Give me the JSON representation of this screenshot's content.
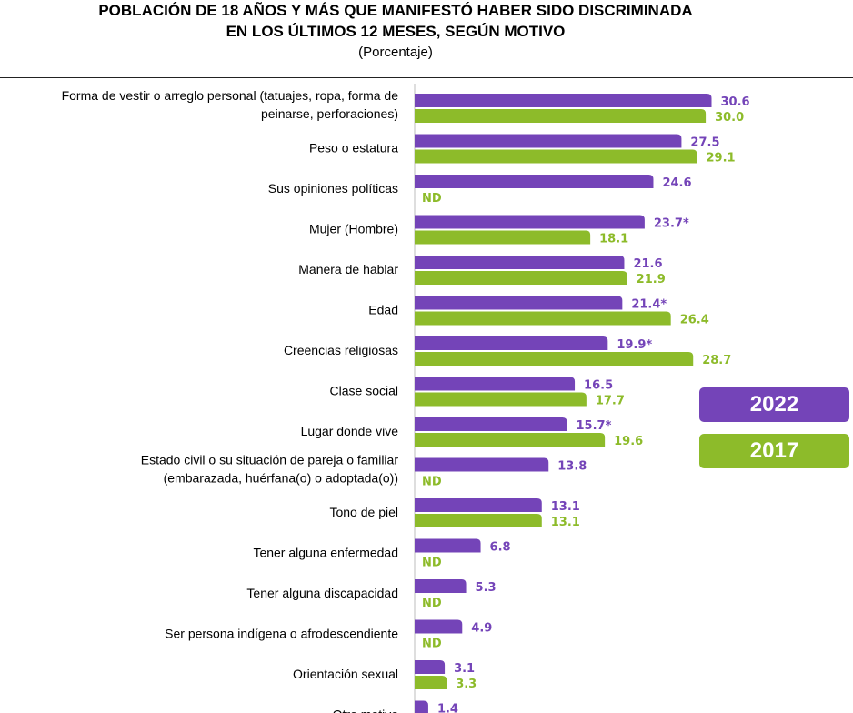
{
  "header": {
    "title_line1": "POBLACIÓN DE 18 AÑOS Y MÁS QUE MANIFESTÓ HABER SIDO DISCRIMINADA",
    "title_line2": "EN LOS ÚLTIMOS 12 MESES, SEGÚN MOTIVO",
    "subtitle": "(Porcentaje)"
  },
  "colors": {
    "series_2022": "#7444b8",
    "series_2017": "#8dbb2a"
  },
  "chart_data": {
    "type": "bar",
    "orientation": "horizontal",
    "unit": "Porcentaje",
    "xlim": [
      0,
      32
    ],
    "grid": false,
    "legend_position": "right",
    "categories": [
      [
        "Forma de vestir o arreglo personal (tatuajes, ropa, forma de",
        "peinarse, perforaciones)"
      ],
      [
        "Peso o estatura"
      ],
      [
        "Sus opiniones políticas"
      ],
      [
        "Mujer (Hombre)"
      ],
      [
        "Manera de hablar"
      ],
      [
        "Edad"
      ],
      [
        "Creencias religiosas"
      ],
      [
        "Clase social"
      ],
      [
        "Lugar donde vive"
      ],
      [
        "Estado civil o su situación de pareja o familiar",
        "(embarazada, huérfana(o) o adoptada(o))"
      ],
      [
        "Tono de piel"
      ],
      [
        "Tener alguna enfermedad"
      ],
      [
        "Tener alguna discapacidad"
      ],
      [
        "Ser persona indígena o afrodescendiente"
      ],
      [
        "Orientación sexual"
      ],
      [
        "Otro motivo"
      ]
    ],
    "series": [
      {
        "name": "2022",
        "values": [
          30.6,
          27.5,
          24.6,
          23.7,
          21.6,
          21.4,
          19.9,
          16.5,
          15.7,
          13.8,
          13.1,
          6.8,
          5.3,
          4.9,
          3.1,
          1.4
        ],
        "labels": [
          "30.6",
          "27.5",
          "24.6",
          "23.7*",
          "21.6",
          "21.4*",
          "19.9*",
          "16.5",
          "15.7*",
          "13.8",
          "13.1",
          "6.8",
          "5.3",
          "4.9",
          "3.1",
          "1.4"
        ]
      },
      {
        "name": "2017",
        "values": [
          30.0,
          29.1,
          null,
          18.1,
          21.9,
          26.4,
          28.7,
          17.7,
          19.6,
          null,
          13.1,
          null,
          null,
          null,
          3.3,
          null
        ],
        "labels": [
          "30.0",
          "29.1",
          "ND",
          "18.1",
          "21.9",
          "26.4",
          "28.7",
          "17.7",
          "19.6",
          "ND",
          "13.1",
          "ND",
          "ND",
          "ND",
          "3.3",
          ""
        ]
      }
    ]
  }
}
